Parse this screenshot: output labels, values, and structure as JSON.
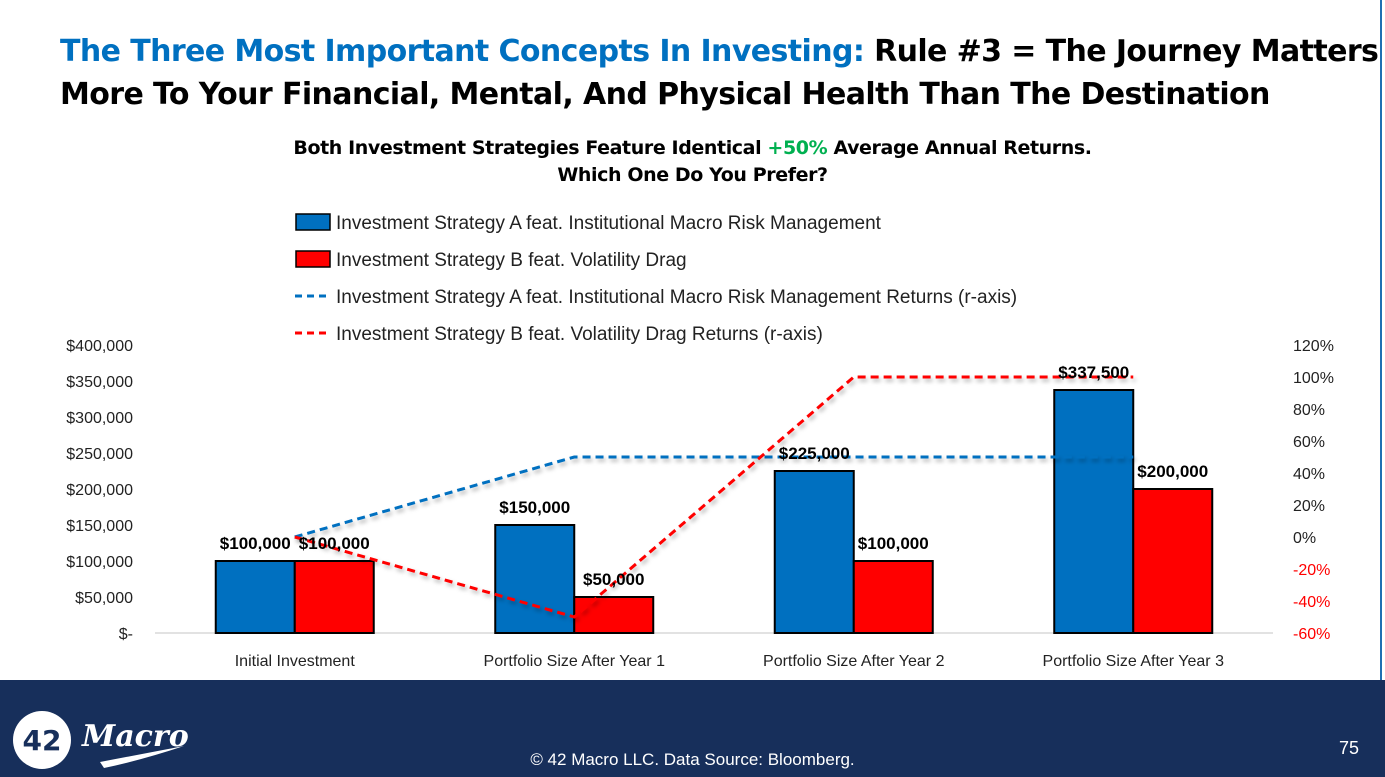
{
  "title": {
    "accent": "The Three Most Important Concepts In Investing:",
    "rest_line1": " Rule #3 = The Journey Matters",
    "line2": "More To Your Financial, Mental, And Physical Health Than The Destination"
  },
  "subtitle": {
    "pre": "Both Investment Strategies Feature Identical ",
    "highlight": "+50%",
    "post": " Average Annual Returns.",
    "line2": "Which One Do You Prefer?"
  },
  "chart_data": {
    "type": "bar",
    "categories": [
      "Initial Investment",
      "Portfolio Size After Year 1",
      "Portfolio Size After Year 2",
      "Portfolio Size After Year 3"
    ],
    "series": [
      {
        "name": "Investment Strategy A feat. Institutional Macro Risk Management",
        "kind": "bar",
        "axis": "left",
        "color": "#0070c0",
        "values": [
          100000,
          150000,
          225000,
          337500
        ],
        "labels": [
          "$100,000",
          "$150,000",
          "$225,000",
          "$337,500"
        ]
      },
      {
        "name": "Investment Strategy B feat. Volatility Drag",
        "kind": "bar",
        "axis": "left",
        "color": "#ff0000",
        "values": [
          100000,
          50000,
          100000,
          200000
        ],
        "labels": [
          "$100,000",
          "$50,000",
          "$100,000",
          "$200,000"
        ]
      },
      {
        "name": "Investment Strategy A feat. Institutional Macro Risk Management Returns (r-axis)",
        "kind": "line",
        "axis": "right",
        "color": "#0070c0",
        "values": [
          0,
          50,
          50,
          50
        ]
      },
      {
        "name": "Investment Strategy B feat. Volatility Drag Returns (r-axis)",
        "kind": "line",
        "axis": "right",
        "color": "#ff0000",
        "values": [
          0,
          -50,
          100,
          100
        ]
      }
    ],
    "ylim": [
      0,
      400000
    ],
    "y_ticks": [
      "$-",
      "$50,000",
      "$100,000",
      "$150,000",
      "$200,000",
      "$250,000",
      "$300,000",
      "$350,000",
      "$400,000"
    ],
    "y2lim": [
      -60,
      120
    ],
    "y2_ticks": [
      "-60%",
      "-40%",
      "-20%",
      "0%",
      "20%",
      "40%",
      "60%",
      "80%",
      "100%",
      "120%"
    ],
    "legend": "top",
    "grid": false
  },
  "footer": {
    "source": "© 42 Macro LLC. Data Source: Bloomberg.",
    "page": "75",
    "logo_text": "42 Macro"
  }
}
